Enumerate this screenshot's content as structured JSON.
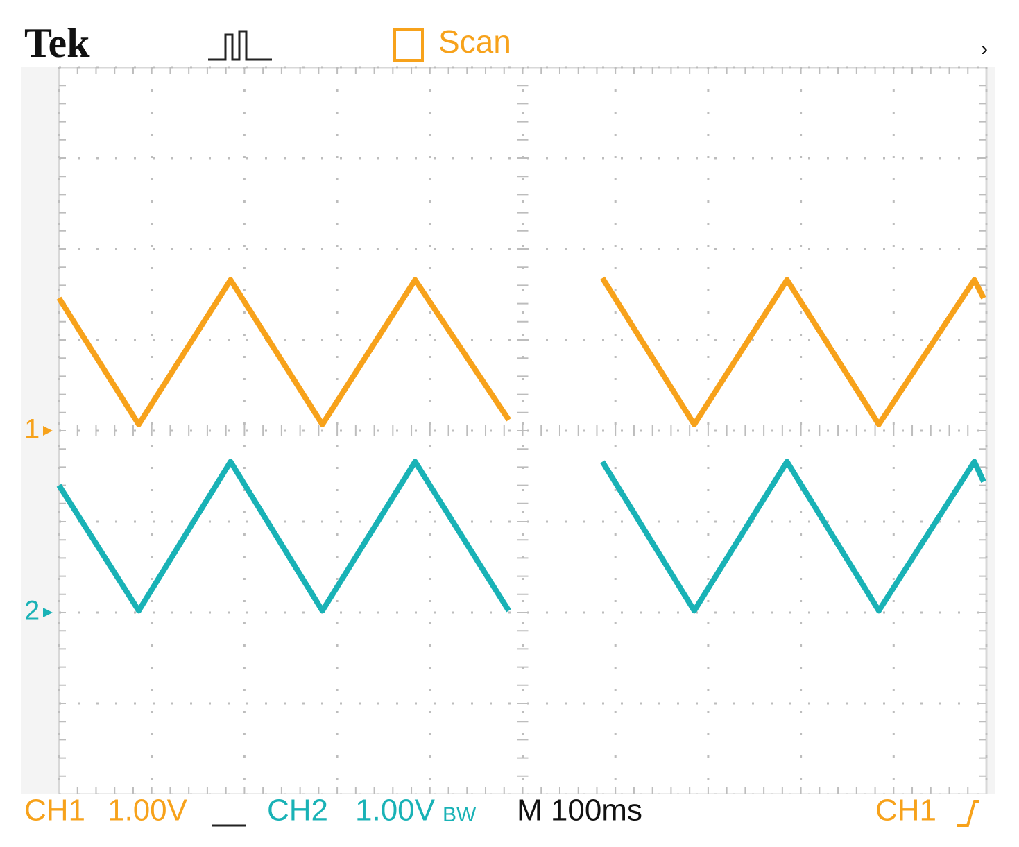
{
  "chart_data": {
    "type": "line",
    "brand": "Tek",
    "acquisition": "Scan",
    "x": [
      0,
      0.86,
      1.85,
      2.84,
      3.84,
      4.85,
      5.35,
      5.86,
      6.85,
      7.85,
      8.84,
      9.87,
      9.97
    ],
    "series": [
      {
        "name": "1",
        "color": "#f7a21b",
        "ground": 4,
        "values": [
          5.46,
          4.07,
          5.66,
          4.07,
          5.66,
          4.12,
          null,
          5.68,
          4.07,
          5.66,
          4.07,
          5.66,
          5.46
        ]
      },
      {
        "name": "2",
        "color": "#19b2b6",
        "ground": 2,
        "values": [
          3.4,
          2.02,
          3.66,
          2.02,
          3.66,
          2.02,
          null,
          3.66,
          2.02,
          3.66,
          2.02,
          3.66,
          3.44
        ]
      }
    ],
    "xlim": [
      0,
      10
    ],
    "ylim": [
      0,
      8
    ],
    "xticks": [
      0,
      1,
      2,
      3,
      4,
      5,
      6,
      7,
      8,
      9,
      10
    ],
    "yticks": [
      0,
      1,
      2,
      3,
      4,
      5,
      6,
      7,
      8
    ],
    "grid": true,
    "status": {
      "ch1_label": "CH1",
      "ch1_scale": "1.00V",
      "ch2_label": "CH2",
      "ch2_scale": "1.00V",
      "ch2_bw": "BW",
      "timebase": "M 100ms",
      "trigger_source": "CH1"
    }
  }
}
